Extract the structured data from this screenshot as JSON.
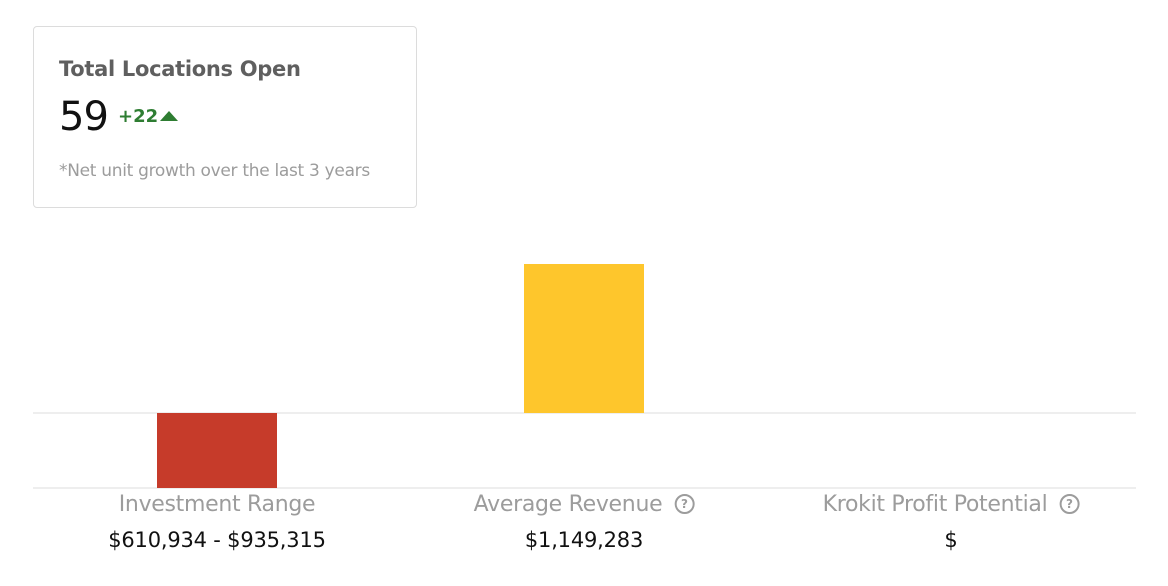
{
  "locations_card": {
    "title": "Total Locations Open",
    "value": "59",
    "change": "+22",
    "change_icon": "triangle-up-icon",
    "change_color": "#2e7d32",
    "note": "*Net unit growth over the last 3 years"
  },
  "chart_data": {
    "type": "bar",
    "categories": [
      "Investment Range",
      "Average Revenue",
      "Krokit Profit Potential"
    ],
    "values": [
      -610934,
      1149283,
      0
    ],
    "colors": [
      "#c63b2a",
      "#fec62c",
      "#cccccc"
    ],
    "ylim": [
      -610934,
      1149283
    ]
  },
  "columns": [
    {
      "label": "Investment Range",
      "value": "$610,934 - $935,315",
      "help": false
    },
    {
      "label": "Average Revenue",
      "value": "$1,149,283",
      "help": true,
      "help_icon": "question-circle-icon"
    },
    {
      "label": "Krokit Profit Potential",
      "value": "$",
      "help": true,
      "help_icon": "question-circle-icon"
    }
  ],
  "help_glyph": "?"
}
